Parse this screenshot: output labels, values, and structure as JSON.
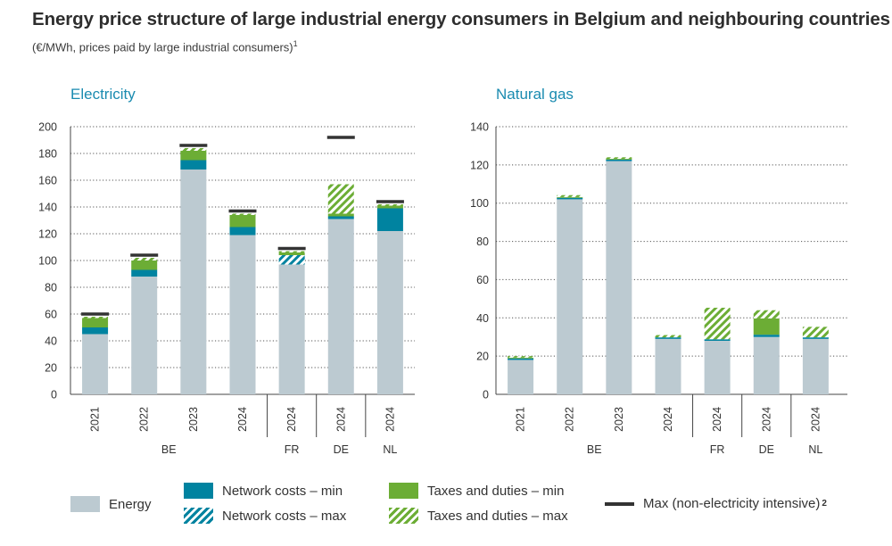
{
  "title": "Energy price structure of large industrial energy consumers in Belgium and neighbouring countries",
  "subtitle": "(€/MWh, prices paid by large industrial consumers)",
  "subtitle_note": "1",
  "colors": {
    "energy": "#bccad1",
    "network_min": "#0083a0",
    "network_max": "#0083a0",
    "taxes_min": "#6cad35",
    "taxes_max": "#6cad35",
    "max_marker": "#333333",
    "panel_title": "#1a8bb0"
  },
  "legend": {
    "energy": "Energy",
    "network_min": "Network costs – min",
    "network_max": "Network costs – max",
    "taxes_min": "Taxes and duties – min",
    "taxes_max": "Taxes and duties – max",
    "max_marker": "Max (non-electricity intensive)",
    "max_marker_note": "2"
  },
  "chart_data": [
    {
      "type": "bar",
      "stacked": true,
      "title": "Electricity",
      "ylim": [
        0,
        200
      ],
      "yticks": [
        0,
        20,
        40,
        60,
        80,
        100,
        120,
        140,
        160,
        180,
        200
      ],
      "grid": true,
      "categories": [
        "2021",
        "2022",
        "2023",
        "2024",
        "2024",
        "2024",
        "2024"
      ],
      "groups": [
        {
          "label": "BE",
          "count": 4
        },
        {
          "label": "FR",
          "count": 1
        },
        {
          "label": "DE",
          "count": 1
        },
        {
          "label": "NL",
          "count": 1
        }
      ],
      "series": [
        {
          "name": "Energy",
          "key": "energy",
          "values": [
            45,
            88,
            168,
            119,
            97,
            131,
            122
          ]
        },
        {
          "name": "Network costs – min",
          "key": "network_min",
          "values": [
            5,
            5,
            7,
            6,
            0,
            2,
            17
          ]
        },
        {
          "name": "Network costs – max",
          "key": "network_max",
          "values": [
            0,
            0,
            0,
            0,
            7,
            0,
            0
          ]
        },
        {
          "name": "Taxes and duties – min",
          "key": "taxes_min",
          "values": [
            7,
            7,
            7,
            9,
            2,
            2,
            2
          ]
        },
        {
          "name": "Taxes and duties – max",
          "key": "taxes_max",
          "values": [
            1,
            2,
            2,
            1,
            1,
            22,
            1
          ]
        }
      ],
      "max_marker": [
        60,
        104,
        186,
        137,
        109,
        192,
        144
      ]
    },
    {
      "type": "bar",
      "stacked": true,
      "title": "Natural gas",
      "ylim": [
        0,
        140
      ],
      "yticks": [
        0,
        20,
        40,
        60,
        80,
        100,
        120,
        140
      ],
      "grid": true,
      "categories": [
        "2021",
        "2022",
        "2023",
        "2024",
        "2024",
        "2024",
        "2024"
      ],
      "groups": [
        {
          "label": "BE",
          "count": 4
        },
        {
          "label": "FR",
          "count": 1
        },
        {
          "label": "DE",
          "count": 1
        },
        {
          "label": "NL",
          "count": 1
        }
      ],
      "series": [
        {
          "name": "Energy",
          "key": "energy",
          "values": [
            18,
            102,
            122,
            29,
            28,
            30,
            29
          ]
        },
        {
          "name": "Network costs – min",
          "key": "network_min",
          "values": [
            0.8,
            0.8,
            0.8,
            0.8,
            0.8,
            1.2,
            0.8
          ]
        },
        {
          "name": "Network costs – max",
          "key": "network_max",
          "values": [
            0,
            0,
            0,
            0,
            0,
            0,
            0
          ]
        },
        {
          "name": "Taxes and duties – min",
          "key": "taxes_min",
          "values": [
            0.4,
            0.4,
            0.4,
            0,
            0,
            8.5,
            0
          ]
        },
        {
          "name": "Taxes and duties – max",
          "key": "taxes_max",
          "values": [
            0.8,
            1,
            0.8,
            1.2,
            16.5,
            4.3,
            5.5
          ]
        }
      ],
      "max_marker": [
        null,
        null,
        null,
        null,
        null,
        null,
        null
      ]
    }
  ]
}
